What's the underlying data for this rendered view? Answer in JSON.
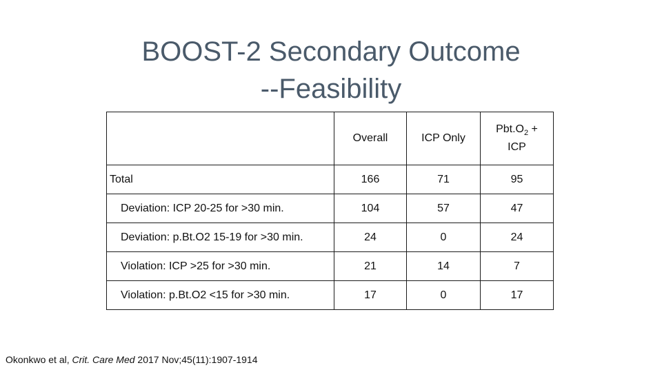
{
  "title": {
    "line1": "BOOST-2 Secondary Outcome",
    "line2": "--Feasibility"
  },
  "table": {
    "columns": [
      "",
      "Overall",
      "ICP Only",
      "Pbt.O2 + ICP"
    ],
    "rows": [
      {
        "label": "Total",
        "overall": "166",
        "icp_only": "71",
        "pbto2_icp": "95"
      },
      {
        "label": "Deviation:  ICP 20-25 for >30 min.",
        "overall": "104",
        "icp_only": "57",
        "pbto2_icp": "47"
      },
      {
        "label": "Deviation:  p.Bt.O2 15-19 for >30 min.",
        "overall": "24",
        "icp_only": "0",
        "pbto2_icp": "24"
      },
      {
        "label": "Violation:  ICP >25 for >30 min.",
        "overall": "21",
        "icp_only": "14",
        "pbto2_icp": "7"
      },
      {
        "label": "Violation:  p.Bt.O2 <15 for >30 min.",
        "overall": "17",
        "icp_only": "0",
        "pbto2_icp": "17"
      }
    ]
  },
  "citation": {
    "authors": "Okonkwo et al, ",
    "journal": "Crit. Care Med",
    "details": " 2017 Nov;45(11):1907-1914"
  }
}
